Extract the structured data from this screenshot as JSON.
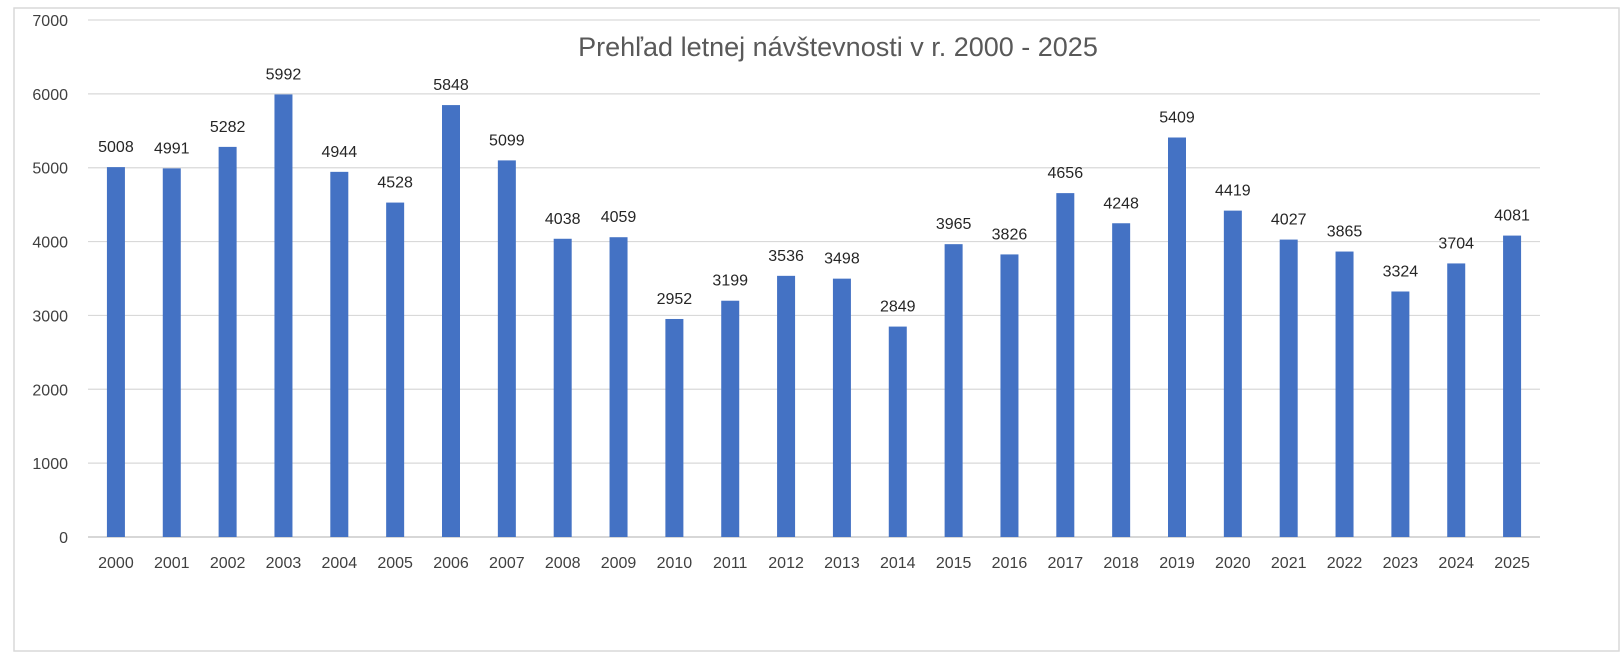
{
  "chart_data": {
    "type": "bar",
    "title": "Prehľad letnej návštevnosti v r. 2000 - 2025",
    "xlabel": "",
    "ylabel": "",
    "ylim": [
      0,
      7000
    ],
    "yticks": [
      0,
      1000,
      2000,
      3000,
      4000,
      5000,
      6000,
      7000
    ],
    "grid": true,
    "legend": "none",
    "categories": [
      "2000",
      "2001",
      "2002",
      "2003",
      "2004",
      "2005",
      "2006",
      "2007",
      "2008",
      "2009",
      "2010",
      "2011",
      "2012",
      "2013",
      "2014",
      "2015",
      "2016",
      "2017",
      "2018",
      "2019",
      "2020",
      "2021",
      "2022",
      "2023",
      "2024",
      "2025"
    ],
    "values": [
      5008,
      4991,
      5282,
      5992,
      4944,
      4528,
      5848,
      5099,
      4038,
      4059,
      2952,
      3199,
      3536,
      3498,
      2849,
      3965,
      3826,
      4656,
      4248,
      5409,
      4419,
      4027,
      3865,
      3324,
      3704,
      4081
    ],
    "bar_color": "#4472C4",
    "grid_color": "#D9D9D9",
    "axis_color": "#BFBFBF"
  }
}
